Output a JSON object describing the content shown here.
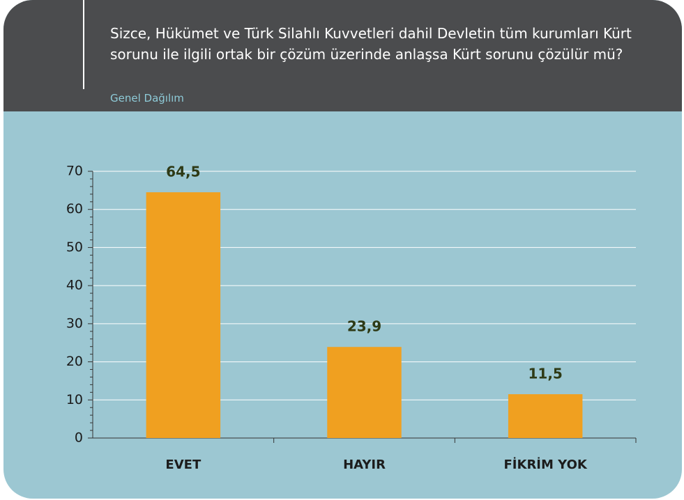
{
  "chart_data": {
    "type": "bar",
    "title": "Sizce, Hükümet ve Türk Silahlı Kuvvetleri dahil Devletin tüm kurumları Kürt sorunu ile ilgili ortak bir çözüm üzerinde anlaşsa Kürt sorunu çözülür mü?",
    "subtitle": "Genel Dağılım",
    "categories": [
      "EVET",
      "HAYIR",
      "FİKRİM YOK"
    ],
    "values": [
      64.5,
      23.9,
      11.5
    ],
    "value_labels": [
      "64,5",
      "23,9",
      "11,5"
    ],
    "color": "#f0a020",
    "ylim": [
      0,
      70
    ],
    "yticks": [
      0,
      10,
      20,
      30,
      40,
      50,
      60,
      70
    ],
    "grid": true
  }
}
